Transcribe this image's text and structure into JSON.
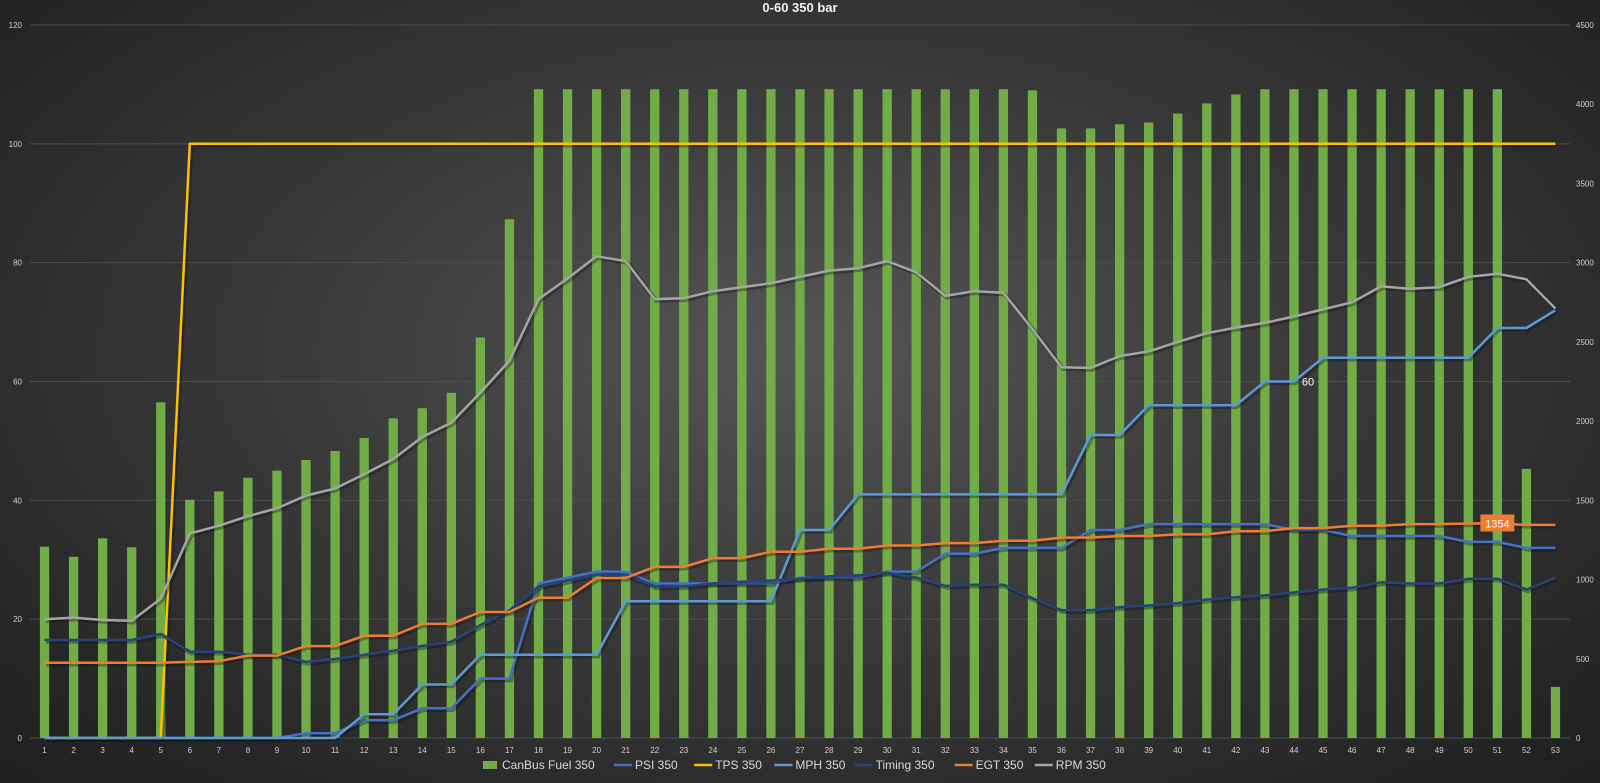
{
  "chart_data": {
    "type": "bar",
    "title": "0-60 350 bar",
    "x": [
      1,
      2,
      3,
      4,
      5,
      6,
      7,
      8,
      9,
      10,
      11,
      12,
      13,
      14,
      15,
      16,
      17,
      18,
      19,
      20,
      21,
      22,
      23,
      24,
      25,
      26,
      27,
      28,
      29,
      30,
      31,
      32,
      33,
      34,
      35,
      36,
      37,
      38,
      39,
      40,
      41,
      42,
      43,
      44,
      45,
      46,
      47,
      48,
      49,
      50,
      51,
      52,
      53
    ],
    "ylim_left": [
      0,
      120
    ],
    "yticks_left": [
      0,
      20,
      40,
      60,
      80,
      100,
      120
    ],
    "ylim_right": [
      0,
      4500
    ],
    "yticks_right": [
      0,
      500,
      1000,
      1500,
      2000,
      2500,
      3000,
      3500,
      4000,
      4500
    ],
    "grid": true,
    "legend_position": "bottom",
    "series": [
      {
        "name": "CanBus Fuel 350",
        "type": "bar",
        "axis": "left",
        "color": "#70ad47",
        "values": [
          32.2,
          30.5,
          33.6,
          32.1,
          56.5,
          40.1,
          41.5,
          43.8,
          45.0,
          46.8,
          48.3,
          50.5,
          53.8,
          55.5,
          58.1,
          67.4,
          87.3,
          109.2,
          109.2,
          109.2,
          109.2,
          109.2,
          109.2,
          109.2,
          109.2,
          109.2,
          109.2,
          109.2,
          109.2,
          109.2,
          109.2,
          109.2,
          109.2,
          109.2,
          109.0,
          102.6,
          102.6,
          103.3,
          103.6,
          105.1,
          106.8,
          108.3,
          109.2,
          109.2,
          109.2,
          109.2,
          109.2,
          109.2,
          109.2,
          109.2,
          109.2,
          45.3,
          8.6
        ]
      },
      {
        "name": "PSI 350",
        "type": "line",
        "axis": "left",
        "color": "#4472c4",
        "values": [
          0,
          0,
          0,
          0,
          0,
          0,
          0,
          0,
          0,
          0.8,
          0.8,
          3.0,
          3.0,
          5.0,
          5.0,
          10.0,
          10.0,
          26.0,
          27.0,
          28.0,
          28.0,
          26.0,
          26.0,
          26.0,
          26.0,
          26.0,
          27.0,
          27.0,
          27.0,
          28.0,
          28.0,
          31.0,
          31.0,
          32.0,
          32.0,
          32.0,
          35.0,
          35.0,
          36.0,
          36.0,
          36.0,
          36.0,
          36.0,
          35.0,
          35.0,
          34.0,
          34.0,
          34.0,
          34.0,
          33.0,
          33.0,
          32.0,
          32.0
        ]
      },
      {
        "name": "TPS 350",
        "type": "line",
        "axis": "left",
        "color": "#ffc000",
        "values": [
          0,
          0,
          0,
          0,
          0,
          100,
          100,
          100,
          100,
          100,
          100,
          100,
          100,
          100,
          100,
          100,
          100,
          100,
          100,
          100,
          100,
          100,
          100,
          100,
          100,
          100,
          100,
          100,
          100,
          100,
          100,
          100,
          100,
          100,
          100,
          100,
          100,
          100,
          100,
          100,
          100,
          100,
          100,
          100,
          100,
          100,
          100,
          100,
          100,
          100,
          100,
          100,
          100
        ]
      },
      {
        "name": "MPH 350",
        "type": "line",
        "axis": "left",
        "color": "#5b9bd5",
        "values": [
          0,
          0,
          0,
          0,
          0,
          0,
          0,
          0,
          0,
          0,
          0,
          4,
          4,
          9,
          9,
          14,
          14,
          14,
          14,
          14,
          23,
          23,
          23,
          23,
          23,
          23,
          35,
          35,
          41,
          41,
          41,
          41,
          41,
          41,
          41,
          41,
          51,
          51,
          56,
          56,
          56,
          56,
          60,
          60,
          64,
          64,
          64,
          64,
          64,
          64,
          69,
          69,
          72
        ]
      },
      {
        "name": "Timing 350",
        "type": "line",
        "axis": "left",
        "color": "#264478",
        "values": [
          16.5,
          16.5,
          16.5,
          16.5,
          17.5,
          14.5,
          14.5,
          14.0,
          14.0,
          12.8,
          13.3,
          14.0,
          14.7,
          15.5,
          16.2,
          19.0,
          21.5,
          25.5,
          26.5,
          27.5,
          27.5,
          25.5,
          25.5,
          26.0,
          26.3,
          26.5,
          26.8,
          27.2,
          27.4,
          27.8,
          27.0,
          25.6,
          25.8,
          25.8,
          23.5,
          21.5,
          21.5,
          22.0,
          22.3,
          22.7,
          23.3,
          23.7,
          24.0,
          24.5,
          25.0,
          25.3,
          26.2,
          26.0,
          26.0,
          26.8,
          26.8,
          25.0,
          27.0
        ]
      },
      {
        "name": "EGT 350",
        "type": "line",
        "axis": "right",
        "color": "#ed7d31",
        "values": [
          475,
          475,
          475,
          475,
          475,
          480,
          485,
          520,
          520,
          580,
          580,
          645,
          645,
          720,
          720,
          795,
          795,
          885,
          885,
          1010,
          1010,
          1080,
          1080,
          1135,
          1135,
          1175,
          1175,
          1195,
          1195,
          1215,
          1215,
          1230,
          1230,
          1245,
          1245,
          1265,
          1265,
          1275,
          1275,
          1285,
          1285,
          1305,
          1305,
          1325,
          1325,
          1340,
          1340,
          1350,
          1350,
          1354,
          1354,
          1345,
          1345
        ]
      },
      {
        "name": "RPM 350",
        "type": "line",
        "axis": "right",
        "color": "#a5a5a5",
        "values": [
          750,
          760,
          745,
          740,
          880,
          1290,
          1340,
          1400,
          1450,
          1530,
          1575,
          1665,
          1760,
          1900,
          1990,
          2180,
          2380,
          2770,
          2900,
          3040,
          3010,
          2770,
          2775,
          2820,
          2845,
          2870,
          2910,
          2950,
          2965,
          3010,
          2940,
          2790,
          2820,
          2810,
          2580,
          2340,
          2335,
          2410,
          2440,
          2500,
          2555,
          2590,
          2620,
          2660,
          2705,
          2750,
          2850,
          2835,
          2845,
          2910,
          2930,
          2895,
          2710
        ]
      }
    ],
    "annotations": [
      {
        "series": "MPH 350",
        "index": 43,
        "text": "60"
      },
      {
        "series": "EGT 350",
        "index": 50,
        "text": "1354"
      }
    ]
  },
  "colors": {
    "egt_label_bg": "#ed7d31",
    "text": "#d9d9d9"
  }
}
